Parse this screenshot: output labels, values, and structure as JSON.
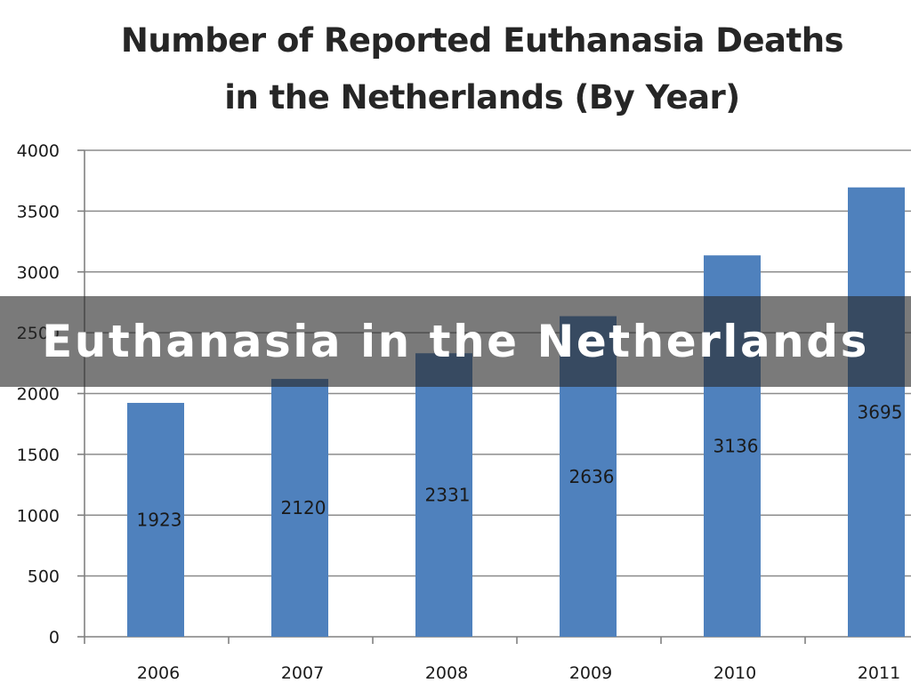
{
  "banner": {
    "text": "Euthanasia in the Netherlands"
  },
  "chart_data": {
    "type": "bar",
    "title_lines": [
      "Number of Reported Euthanasia Deaths",
      "in the Netherlands (By Year)"
    ],
    "categories": [
      "2006",
      "2007",
      "2008",
      "2009",
      "2010",
      "2011"
    ],
    "values": [
      1923,
      2120,
      2331,
      2636,
      3136,
      3695
    ],
    "data_labels": [
      "1923",
      "2120",
      "2331",
      "2636",
      "3136",
      "3695"
    ],
    "y_ticks": [
      "0",
      "500",
      "1000",
      "1500",
      "2000",
      "2500",
      "3000",
      "3500",
      "4000"
    ],
    "ylim": [
      0,
      4000
    ],
    "grid": true,
    "legend": "none",
    "colors": {
      "bar": "#4f81bd",
      "grid": "#8c8c8c",
      "axis": "#808080",
      "banner": "#3c3c3c"
    }
  }
}
